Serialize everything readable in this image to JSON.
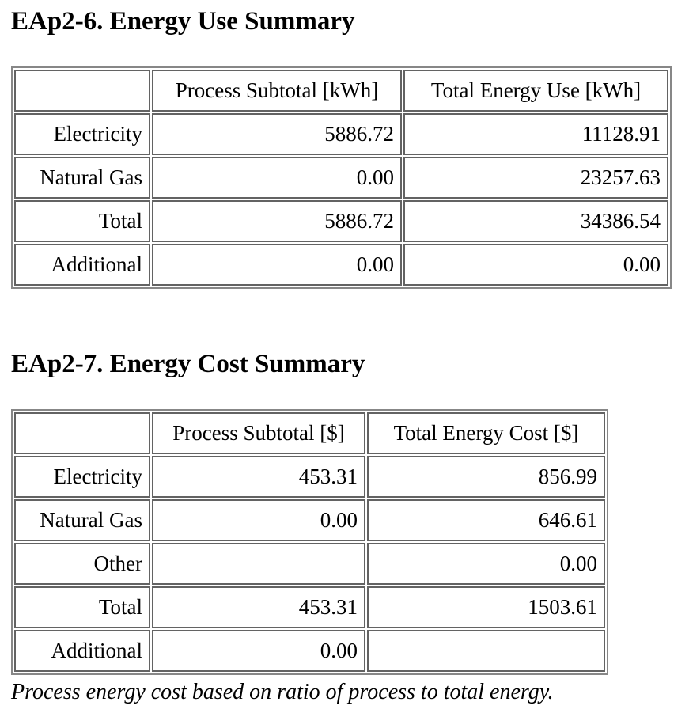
{
  "style": {
    "background_color": "#ffffff",
    "text_color": "#000000",
    "table_outer_border_color": "#878787",
    "table_cell_border_color": "#636363"
  },
  "sections": [
    {
      "title": "EAp2-6. Energy Use Summary",
      "table": {
        "columns": [
          "",
          "Process Subtotal [kWh]",
          "Total Energy Use [kWh]"
        ],
        "rows": [
          {
            "label": "Electricity",
            "values": [
              "5886.72",
              "11128.91"
            ]
          },
          {
            "label": "Natural Gas",
            "values": [
              "0.00",
              "23257.63"
            ]
          },
          {
            "label": "Total",
            "values": [
              "5886.72",
              "34386.54"
            ]
          },
          {
            "label": "Additional",
            "values": [
              "0.00",
              "0.00"
            ]
          }
        ]
      }
    },
    {
      "title": "EAp2-7. Energy Cost Summary",
      "table": {
        "columns": [
          "",
          "Process Subtotal [$]",
          "Total Energy Cost [$]"
        ],
        "rows": [
          {
            "label": "Electricity",
            "values": [
              "453.31",
              "856.99"
            ]
          },
          {
            "label": "Natural Gas",
            "values": [
              "0.00",
              "646.61"
            ]
          },
          {
            "label": "Other",
            "values": [
              "",
              "0.00"
            ]
          },
          {
            "label": "Total",
            "values": [
              "453.31",
              "1503.61"
            ]
          },
          {
            "label": "Additional",
            "values": [
              "0.00",
              ""
            ]
          }
        ]
      },
      "footnote": "Process energy cost based on ratio of process to total energy."
    }
  ]
}
